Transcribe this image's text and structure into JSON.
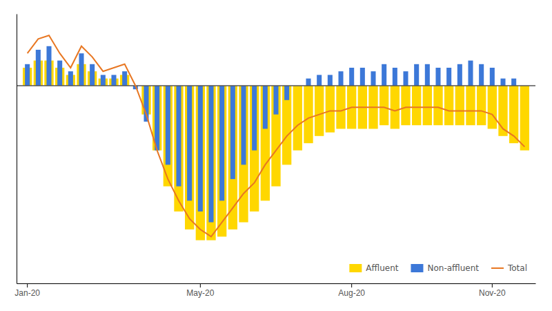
{
  "chart_data": {
    "type": "bar",
    "categories": [
      "Jan-20",
      null,
      null,
      null,
      null,
      null,
      null,
      null,
      null,
      null,
      null,
      null,
      null,
      null,
      null,
      null,
      "May-20",
      null,
      null,
      null,
      null,
      null,
      null,
      null,
      null,
      null,
      null,
      null,
      null,
      null,
      "Aug-20",
      null,
      null,
      null,
      null,
      null,
      null,
      null,
      null,
      null,
      null,
      null,
      null,
      "Nov-20",
      null,
      null,
      null
    ],
    "series": [
      {
        "name": "Affluent",
        "type": "bar",
        "color": "#FFD700",
        "values": [
          5,
          7,
          7,
          5,
          3,
          6,
          4,
          2,
          2,
          3,
          0,
          -8,
          -18,
          -28,
          -35,
          -40,
          -43,
          -43,
          -42,
          -40,
          -38,
          -35,
          -32,
          -28,
          -22,
          -18,
          -16,
          -14,
          -13,
          -12,
          -12,
          -12,
          -12,
          -11,
          -12,
          -11,
          -11,
          -11,
          -11,
          -11,
          -11,
          -11,
          -11,
          -12,
          -14,
          -16,
          -18
        ]
      },
      {
        "name": "Non-affluent",
        "type": "bar",
        "color": "#3C78D8",
        "values": [
          6,
          10,
          11,
          7,
          4,
          9,
          6,
          3,
          3,
          4,
          -1,
          -10,
          -18,
          -22,
          -28,
          -32,
          -35,
          -38,
          -32,
          -26,
          -22,
          -18,
          -12,
          -8,
          -4,
          0,
          2,
          3,
          3,
          4,
          5,
          5,
          4,
          6,
          5,
          4,
          6,
          6,
          5,
          5,
          6,
          7,
          6,
          5,
          2,
          2,
          0
        ]
      },
      {
        "name": "Total",
        "type": "line",
        "color": "#E87722",
        "values": [
          9,
          13,
          14,
          9,
          5,
          11,
          8,
          4,
          5,
          6,
          0,
          -8,
          -18,
          -26,
          -32,
          -37,
          -40,
          -42,
          -38,
          -34,
          -30,
          -27,
          -22,
          -18,
          -14,
          -11,
          -9,
          -8,
          -7,
          -7,
          -6,
          -6,
          -6,
          -6,
          -7,
          -6,
          -6,
          -6,
          -6,
          -7,
          -7,
          -7,
          -7,
          -8,
          -12,
          -14,
          -17
        ]
      }
    ],
    "ylim": [
      -55,
      20
    ],
    "grid": false,
    "legend": "lower right",
    "tick_labels": "x"
  }
}
